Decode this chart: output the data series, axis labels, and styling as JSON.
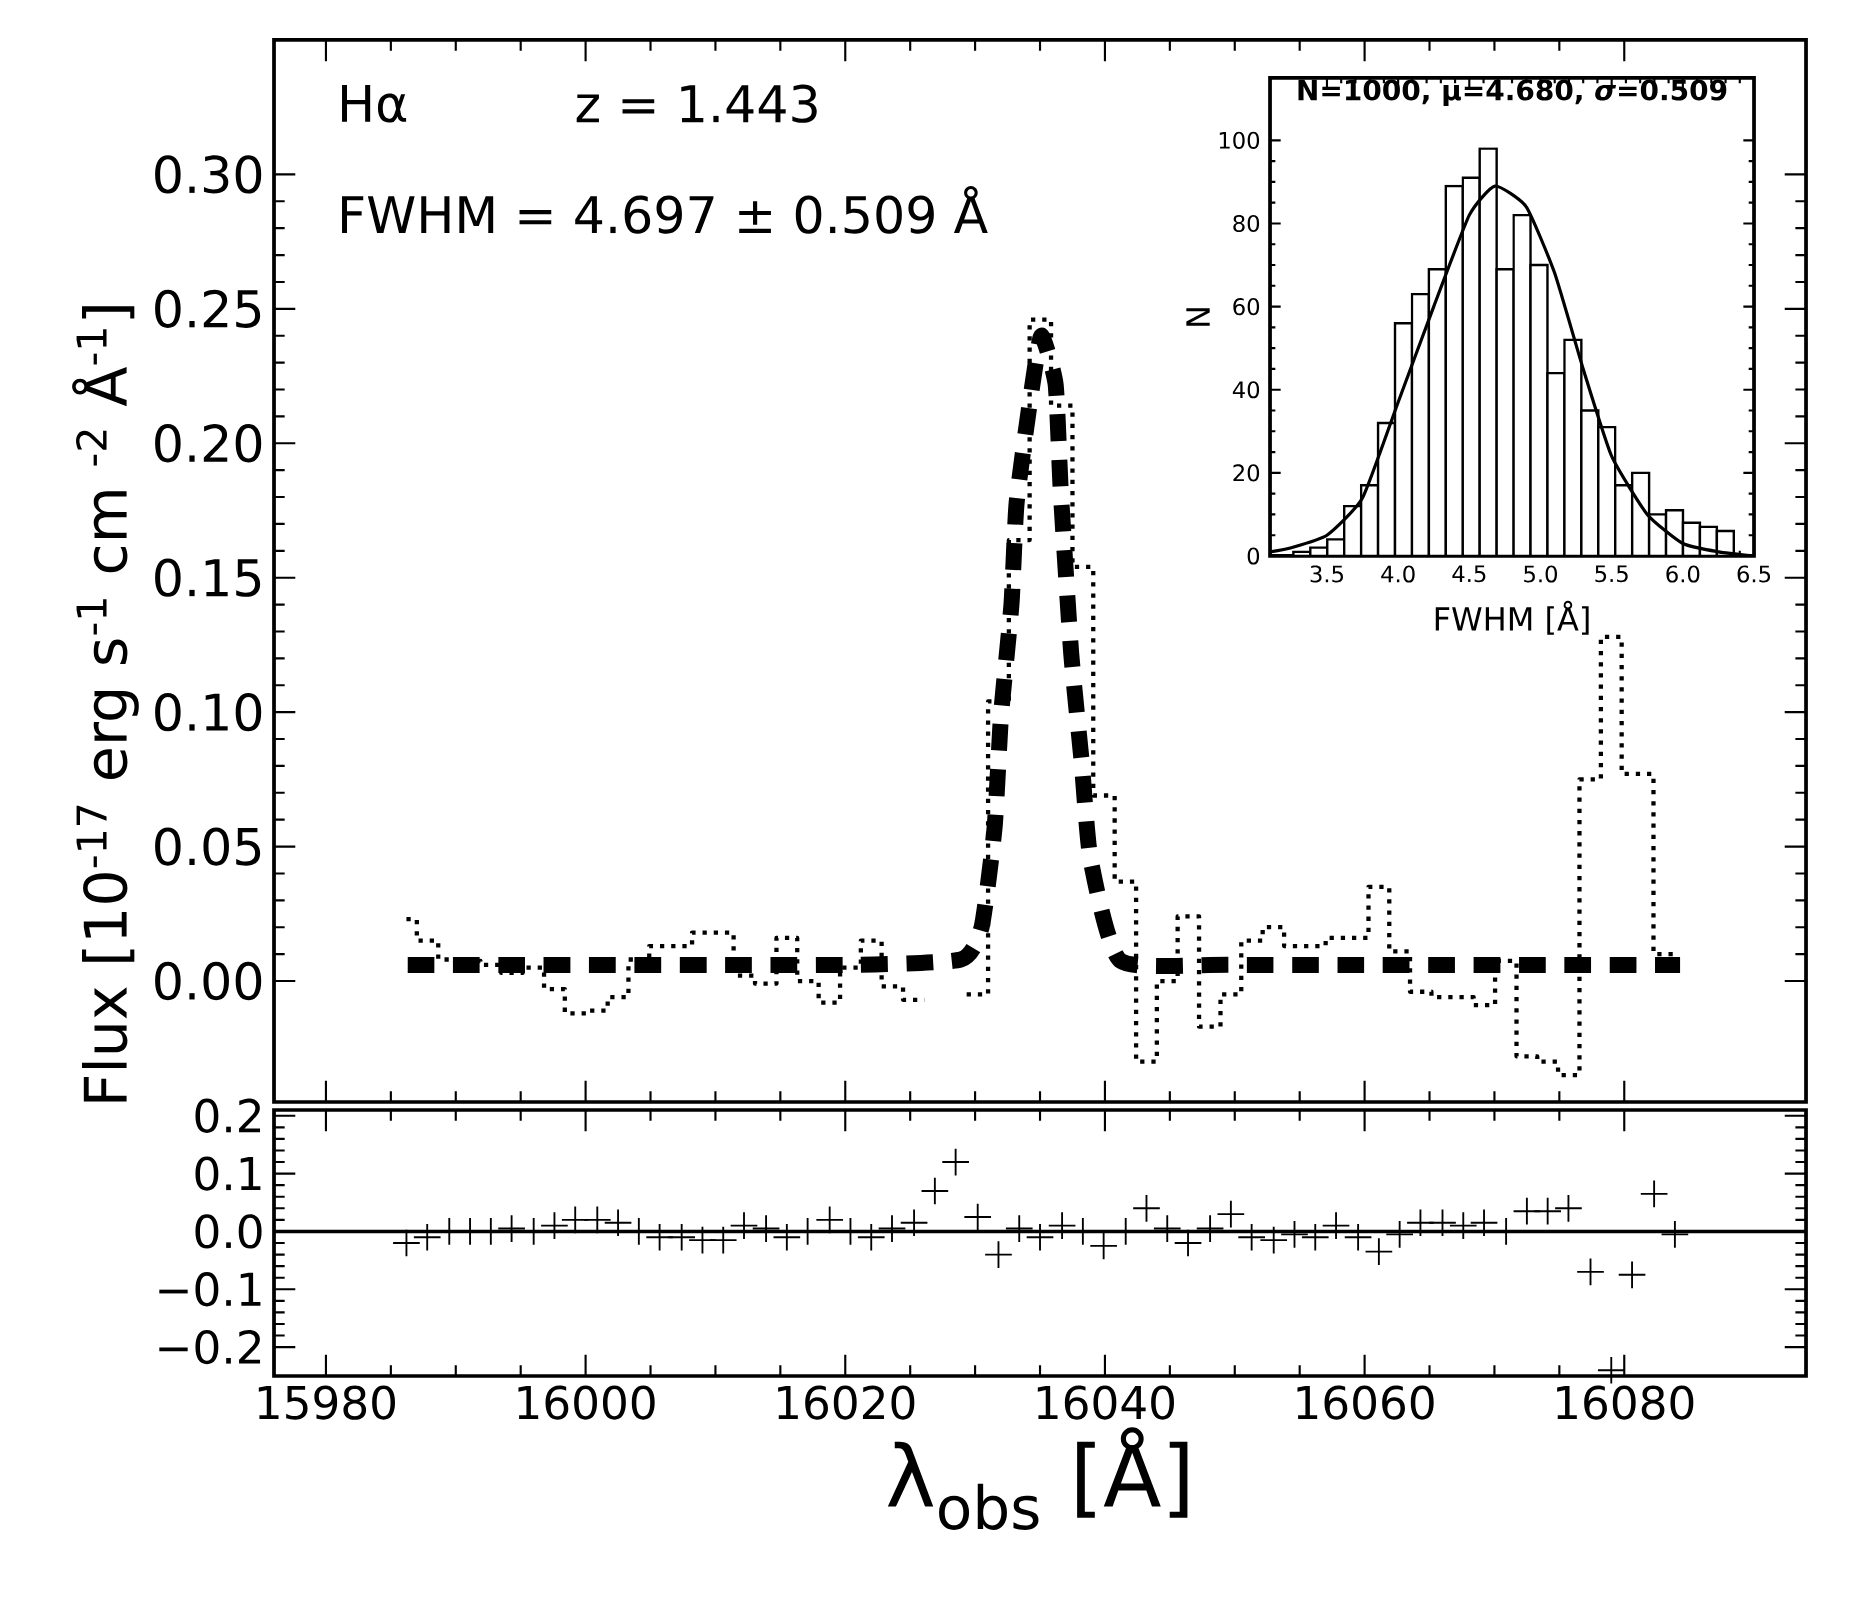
{
  "chart_data": [
    {
      "type": "line",
      "ylabel": "Flux [10$^{-17}$ erg s$^{-1}$ cm $^{-2}$ Å$^{-1}$]",
      "annotations": [
        "Hα",
        "z = 1.443",
        "FWHM =   4.697 ± 0.509 Å"
      ],
      "xlim": [
        15976,
        16094
      ],
      "ylim": [
        -0.045,
        0.35
      ],
      "xticks": [
        15980,
        16000,
        16020,
        16040,
        16060,
        16080
      ],
      "yticks": [
        {
          "value": 0,
          "label": "0.00"
        },
        {
          "value": 0.05,
          "label": "0.05"
        },
        {
          "value": 0.1,
          "label": "0.10"
        },
        {
          "value": 0.15,
          "label": "0.15"
        },
        {
          "value": 0.2,
          "label": "0.20"
        },
        {
          "value": 0.25,
          "label": "0.25"
        },
        {
          "value": 0.3,
          "label": "0.30"
        }
      ],
      "tick_labels": "y",
      "series": [
        {
          "type": "step",
          "line_style": "dotted",
          "color": "#000000",
          "x": [
            15986.2,
            15987.8,
            15989.5,
            15991.1,
            15992.7,
            15994.3,
            15996.0,
            15997.6,
            15999.2,
            16000.9,
            16002.5,
            16004.1,
            16005.7,
            16007.4,
            16009.0,
            16010.6,
            16012.2,
            16013.9,
            16015.5,
            16017.1,
            16018.8,
            16020.4,
            16022.0,
            16023.6,
            16025.3,
            16026.9,
            16028.5,
            16030.2,
            16031.8,
            16033.4,
            16035.0,
            16036.7,
            16038.3,
            16039.9,
            16041.6,
            16043.2,
            16044.8,
            16046.4,
            16048.1,
            16049.7,
            16051.3,
            16053.0,
            16054.6,
            16056.2,
            16057.8,
            16059.5,
            16061.1,
            16062.7,
            16064.3,
            16066.0,
            16067.6,
            16069.2,
            16070.9,
            16072.5,
            16074.1,
            16075.7,
            16077.4,
            16079.0,
            16080.6,
            16083.9
          ],
          "values": [
            0.023,
            0.015,
            0.008,
            0.0075,
            0.006,
            0.003,
            0.005,
            -0.003,
            -0.012,
            -0.011,
            -0.006,
            0.008,
            0.013,
            0.013,
            0.018,
            0.018,
            0.002,
            -0.001,
            0.016,
            0,
            -0.008,
            0.005,
            0.015,
            -0.002,
            -0.007,
            null,
            null,
            -0.005,
            0.104,
            0.164,
            0.246,
            0.214,
            0.154,
            0.069,
            0.037,
            -0.03,
            0.0,
            0.024,
            -0.017,
            -0.005,
            0.015,
            0.02,
            0.013,
            0.013,
            0.016,
            0.016,
            0.035,
            0.011,
            -0.004,
            -0.006,
            -0.006,
            -0.009,
            0.0075,
            -0.028,
            -0.03,
            -0.035,
            0.075,
            0.128,
            0.077,
            0.01
          ]
        },
        {
          "type": "line",
          "line_style": "dashed",
          "color": "#000000",
          "x": [
            15986.3,
            16020.0,
            16028.9,
            16030.5,
            16031.5,
            16032.0,
            16032.8,
            16033.2,
            16034.3,
            16035.1,
            16036.2,
            16036.6,
            16037.4,
            16038.2,
            16038.9,
            16041.2,
            16050.0,
            16084.3
          ],
          "values": [
            0.006,
            0.006,
            0.008,
            0.02,
            0.057,
            0.099,
            0.14,
            0.178,
            0.218,
            0.24,
            0.222,
            0.182,
            0.122,
            0.082,
            0.045,
            0.0075,
            0.006,
            0.006
          ]
        }
      ]
    },
    {
      "type": "scatter",
      "xlabel": "λ$_{obs}$ [Å]",
      "marker": "cross",
      "color": "#000000",
      "xlim": [
        15976,
        16094
      ],
      "ylim": [
        -0.25,
        0.21
      ],
      "xticks": [
        15980,
        16000,
        16020,
        16040,
        16060,
        16080
      ],
      "yticks": [
        {
          "value": -0.2,
          "label": "−0.2"
        },
        {
          "value": -0.1,
          "label": "−0.1"
        },
        {
          "value": 0,
          "label": "0.0"
        },
        {
          "value": 0.1,
          "label": "0.1"
        },
        {
          "value": 0.2,
          "label": "0.2"
        }
      ],
      "ref_lines": [
        {
          "axis": "y",
          "value": 0,
          "color": "#000000"
        }
      ],
      "x": [
        15986.2,
        15987.8,
        15989.5,
        15991.1,
        15992.7,
        15994.3,
        15996.0,
        15997.6,
        15999.2,
        16000.9,
        16002.5,
        16004.1,
        16005.7,
        16007.4,
        16009.0,
        16010.6,
        16012.2,
        16013.9,
        16015.5,
        16017.1,
        16018.8,
        16020.4,
        16022.0,
        16023.6,
        16025.3,
        16026.9,
        16028.5,
        16030.2,
        16031.8,
        16033.4,
        16035.0,
        16036.7,
        16038.3,
        16039.9,
        16041.6,
        16043.2,
        16044.8,
        16046.4,
        16048.1,
        16049.7,
        16051.3,
        16053.0,
        16054.6,
        16056.2,
        16057.8,
        16059.5,
        16061.1,
        16062.7,
        16064.3,
        16066.0,
        16067.6,
        16069.2,
        16070.9,
        16072.5,
        16074.1,
        16075.7,
        16077.4,
        16079.0,
        16080.6,
        16082.3,
        16083.9
      ],
      "values": [
        -0.02,
        -0.01,
        0.0,
        0.0,
        0.0,
        0.005,
        0.0,
        0.01,
        0.02,
        0.02,
        0.015,
        0.0,
        -0.01,
        -0.01,
        -0.015,
        -0.015,
        0.01,
        0.005,
        -0.01,
        0.0,
        0.02,
        0.0,
        -0.01,
        0.005,
        0.015,
        0.07,
        0.12,
        0.025,
        -0.04,
        0.005,
        -0.01,
        0.01,
        0.0,
        -0.025,
        0.0,
        0.04,
        0.005,
        -0.02,
        0.005,
        0.03,
        -0.01,
        -0.015,
        -0.005,
        -0.01,
        0.01,
        -0.01,
        -0.035,
        -0.005,
        0.015,
        0.015,
        0.01,
        0.015,
        0.0,
        0.035,
        0.035,
        0.04,
        -0.07,
        -0.24,
        -0.075,
        0.065,
        -0.005
      ]
    },
    {
      "type": "histogram",
      "title": "N=1000, μ=4.680, *σ*=0.509",
      "xlabel": "FWHM [Å]",
      "ylabel": "N",
      "color": "#000000",
      "xlim": [
        3.1,
        6.5
      ],
      "ylim": [
        0,
        115
      ],
      "xticks": [
        {
          "value": 3.5,
          "label": "3.5"
        },
        {
          "value": 4,
          "label": "4.0"
        },
        {
          "value": 4.5,
          "label": "4.5"
        },
        {
          "value": 5,
          "label": "5.0"
        },
        {
          "value": 5.5,
          "label": "5.5"
        },
        {
          "value": 6,
          "label": "6.0"
        },
        {
          "value": 6.5,
          "label": "6.5"
        }
      ],
      "yticks": [
        0,
        20,
        40,
        60,
        80,
        100
      ],
      "bins": [
        3.264,
        3.383,
        3.502,
        3.621,
        3.74,
        3.859,
        3.978,
        4.097,
        4.216,
        4.335,
        4.454,
        4.573,
        4.692,
        4.811,
        4.93,
        5.049,
        5.168,
        5.287,
        5.406,
        5.525,
        5.644,
        5.763,
        5.882,
        6.001,
        6.12,
        6.239,
        6.358
      ],
      "values": [
        1,
        2,
        4,
        12,
        17,
        32,
        56,
        63,
        69,
        89,
        91,
        98,
        69,
        82,
        70,
        44,
        52,
        35,
        31,
        17,
        20,
        10,
        11,
        8,
        7,
        6
      ],
      "series": [
        {
          "type": "line",
          "color": "#000000",
          "x": [
            3.1,
            3.25,
            3.5,
            3.75,
            4.0,
            4.25,
            4.5,
            4.68,
            4.9,
            5.1,
            5.3,
            5.5,
            5.75,
            6.0,
            6.25,
            6.5
          ],
          "values": [
            1,
            2,
            5,
            14,
            37,
            60,
            82,
            89,
            84,
            68,
            45,
            24,
            10,
            3,
            1,
            0
          ]
        }
      ]
    }
  ]
}
